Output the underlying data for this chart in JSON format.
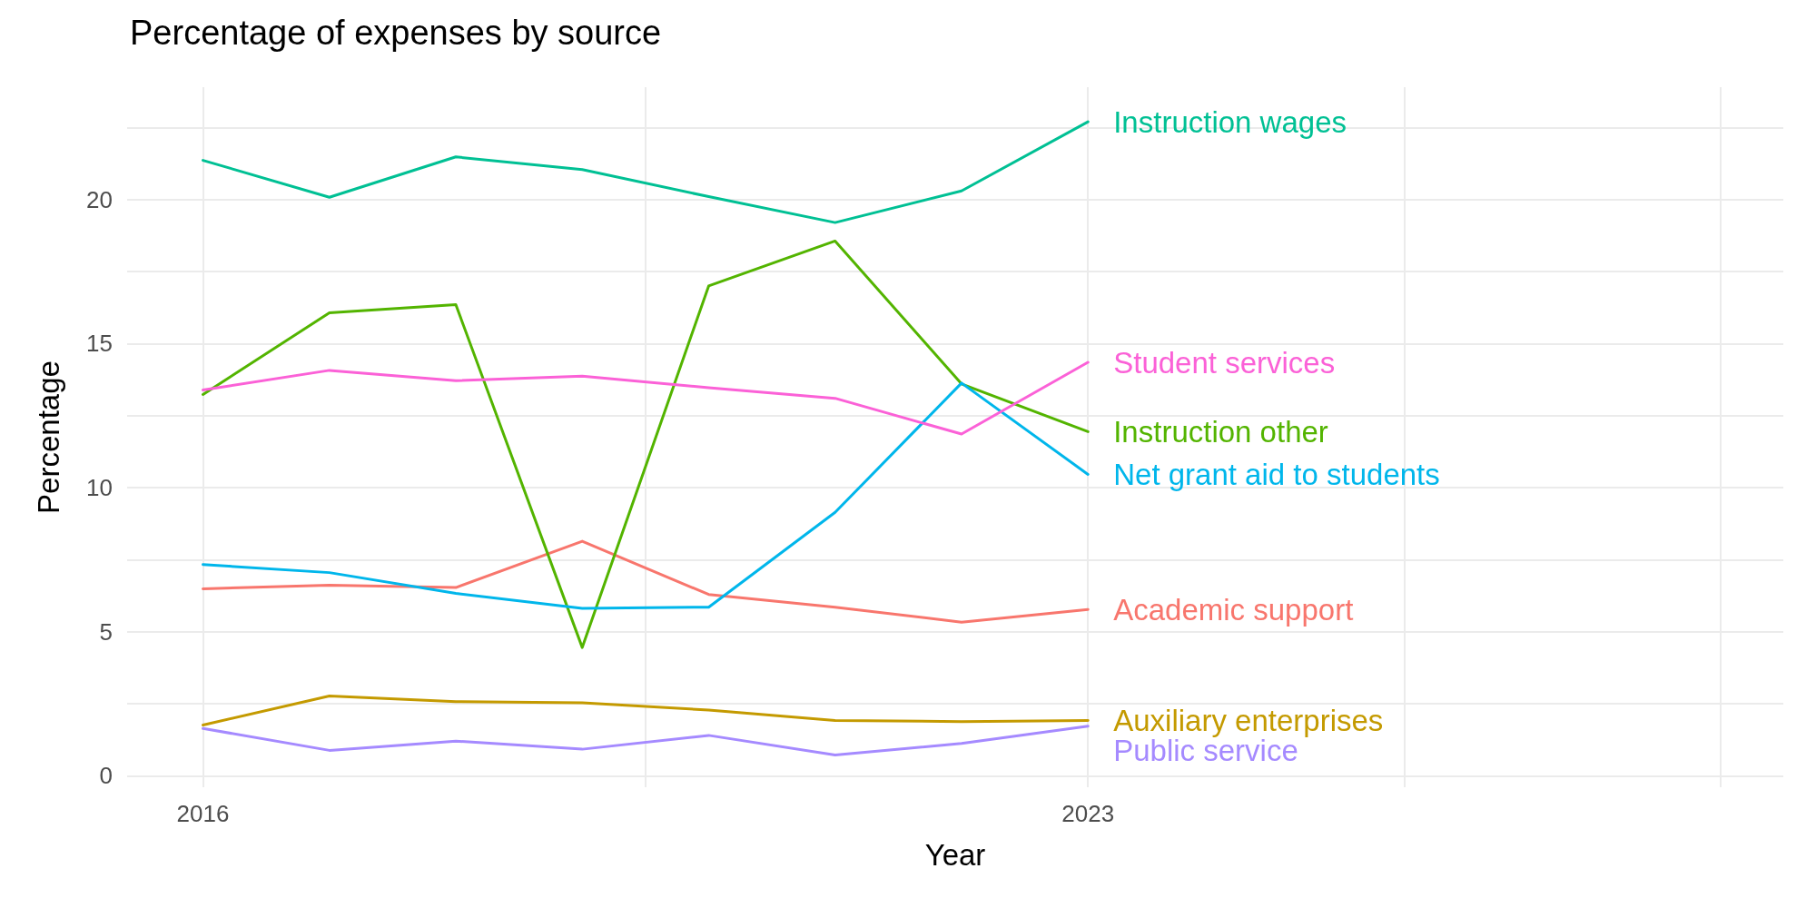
{
  "chart_data": {
    "type": "line",
    "title": "Percentage of expenses by source",
    "xlabel": "Year",
    "ylabel": "Percentage",
    "x": [
      2016,
      2017,
      2018,
      2019,
      2020,
      2021,
      2022,
      2023
    ],
    "xlim": [
      2015.4,
      2028.5
    ],
    "xticks": [
      2016,
      {
        "value": 2019.5,
        "label": null
      },
      2023,
      {
        "value": 2025.5,
        "label": null
      },
      {
        "value": 2028,
        "label": null
      }
    ],
    "ylim": [
      -0.4,
      23.9
    ],
    "yticks": [
      0,
      {
        "value": 2.5,
        "label": null
      },
      5,
      {
        "value": 7.5,
        "label": null
      },
      10,
      {
        "value": 12.5,
        "label": null
      },
      15,
      {
        "value": 17.5,
        "label": null
      },
      20,
      {
        "value": 22.5,
        "label": null
      }
    ],
    "grid": true,
    "legend": false,
    "marker": "none",
    "line_style": "solid",
    "series": [
      {
        "name": "Academic support",
        "color": "#f8766d",
        "values": [
          6.49,
          6.61,
          6.53,
          8.14,
          6.29,
          5.85,
          5.33,
          5.77
        ]
      },
      {
        "name": "Auxiliary enterprises",
        "color": "#c49a00",
        "values": [
          1.76,
          2.77,
          2.57,
          2.53,
          2.28,
          1.92,
          1.88,
          1.92
        ]
      },
      {
        "name": "Instruction other",
        "color": "#53b400",
        "values": [
          13.23,
          16.07,
          16.35,
          4.45,
          17.0,
          18.56,
          13.6,
          11.94
        ]
      },
      {
        "name": "Instruction wages",
        "color": "#00c094",
        "values": [
          21.36,
          20.08,
          21.48,
          21.04,
          20.1,
          19.2,
          20.3,
          22.7
        ]
      },
      {
        "name": "Net grant aid to students",
        "color": "#00b6eb",
        "values": [
          7.33,
          7.05,
          6.33,
          5.81,
          5.85,
          9.14,
          13.63,
          10.46
        ]
      },
      {
        "name": "Public service",
        "color": "#a58aff",
        "values": [
          1.64,
          0.88,
          1.2,
          0.92,
          1.4,
          0.72,
          1.12,
          1.72
        ]
      },
      {
        "name": "Student services",
        "color": "#fb61d7",
        "values": [
          13.39,
          14.07,
          13.71,
          13.87,
          13.47,
          13.1,
          11.86,
          14.35
        ]
      }
    ]
  }
}
